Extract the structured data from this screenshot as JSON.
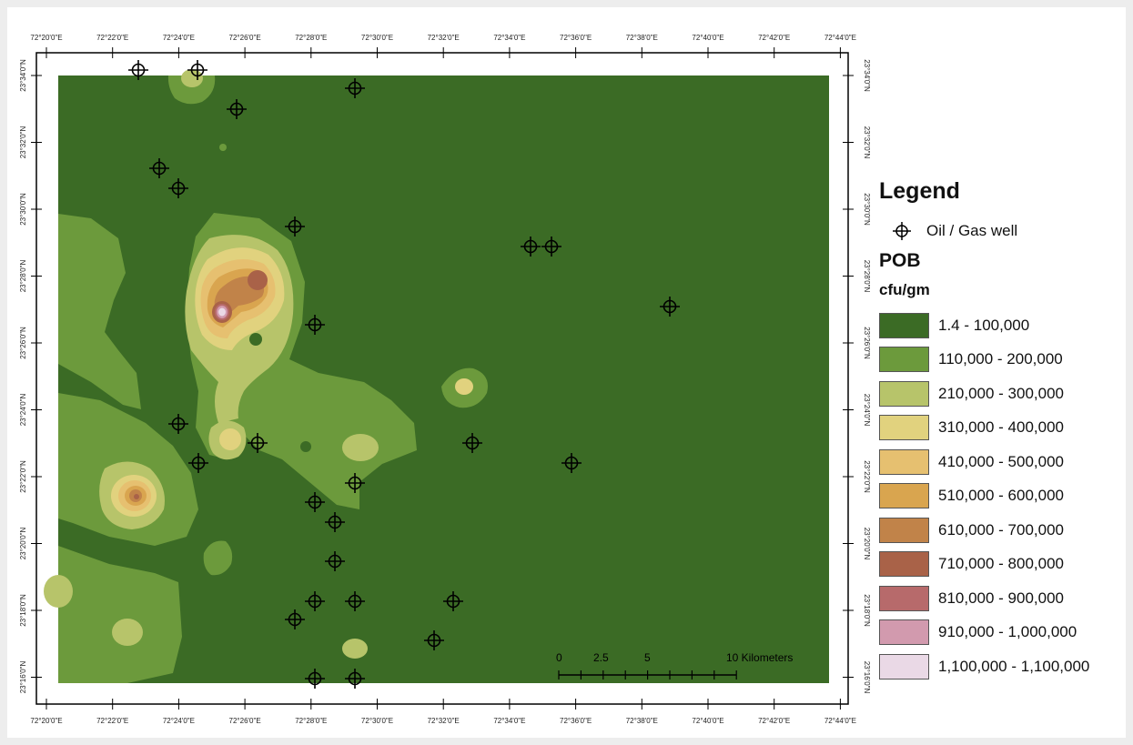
{
  "map": {
    "top_ticks": [
      "72°20'0\"E",
      "72°22'0\"E",
      "72°24'0\"E",
      "72°26'0\"E",
      "72°28'0\"E",
      "72°30'0\"E",
      "72°32'0\"E",
      "72°34'0\"E",
      "72°36'0\"E",
      "72°38'0\"E",
      "72°40'0\"E",
      "72°42'0\"E",
      "72°44'0\"E"
    ],
    "bottom_ticks": [
      "72°20'0\"E",
      "72°22'0\"E",
      "72°24'0\"E",
      "72°26'0\"E",
      "72°28'0\"E",
      "72°30'0\"E",
      "72°32'0\"E",
      "72°34'0\"E",
      "72°36'0\"E",
      "72°38'0\"E",
      "72°40'0\"E",
      "72°42'0\"E",
      "72°44'0\"E"
    ],
    "left_ticks": [
      "23°34'0\"N",
      "23°32'0\"N",
      "23°30'0\"N",
      "23°28'0\"N",
      "23°26'0\"N",
      "23°24'0\"N",
      "23°22'0\"N",
      "23°20'0\"N",
      "23°18'0\"N",
      "23°16'0\"N"
    ],
    "right_ticks": [
      "23°34'0\"N",
      "23°32'0\"N",
      "23°30'0\"N",
      "23°28'0\"N",
      "23°26'0\"N",
      "23°24'0\"N",
      "23°22'0\"N",
      "23°20'0\"N",
      "23°18'0\"N",
      "23°16'0\"N"
    ],
    "scale_bar": {
      "labels": [
        "0",
        "2.5",
        "5",
        "10 Kilometers"
      ]
    }
  },
  "legend": {
    "title": "Legend",
    "well_label": "Oil / Gas well",
    "variable": "POB",
    "unit": "cfu/gm",
    "classes": [
      {
        "label": "1.4 - 100,000",
        "color": "#3b6b25"
      },
      {
        "label": "110,000 - 200,000",
        "color": "#6c9a3c"
      },
      {
        "label": "210,000 - 300,000",
        "color": "#b7c46a"
      },
      {
        "label": "310,000 - 400,000",
        "color": "#e1d27e"
      },
      {
        "label": "410,000 - 500,000",
        "color": "#e6c070"
      },
      {
        "label": "510,000 - 600,000",
        "color": "#d9a54f"
      },
      {
        "label": "610,000 - 700,000",
        "color": "#c18349"
      },
      {
        "label": "710,000 - 800,000",
        "color": "#a96248"
      },
      {
        "label": "810,000 - 900,000",
        "color": "#b76a6b"
      },
      {
        "label": "910,000 - 1,000,000",
        "color": "#d29aae"
      },
      {
        "label": "1,100,000 - 1,100,000",
        "color": "#ead9e6"
      }
    ]
  }
}
